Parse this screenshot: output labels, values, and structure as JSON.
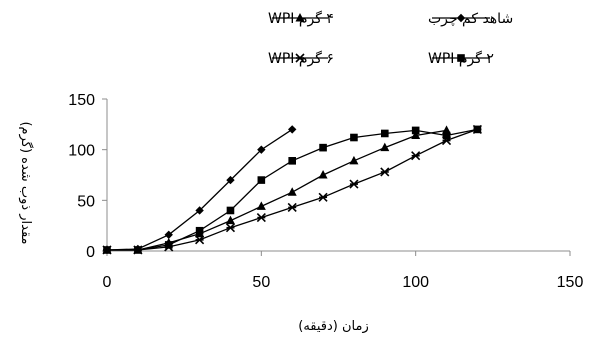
{
  "chart_data": {
    "type": "line",
    "xlabel": "زمان (دقیقه)",
    "ylabel": "مقدار ذوب شده (گرم)",
    "xlim": [
      0,
      150
    ],
    "ylim": [
      0,
      150
    ],
    "xticks": [
      0,
      50,
      100,
      150
    ],
    "yticks": [
      0,
      50,
      100,
      150
    ],
    "grid": false,
    "legend_position": "top",
    "series": [
      {
        "name": "شاهد کم چرب",
        "marker": "diamond",
        "x": [
          0,
          10,
          20,
          30,
          40,
          50,
          60
        ],
        "y": [
          1,
          2,
          16,
          40,
          70,
          100,
          120
        ]
      },
      {
        "name": "۴ گرم WPI",
        "marker": "triangle",
        "x": [
          0,
          10,
          20,
          30,
          40,
          50,
          60,
          70,
          80,
          90,
          100,
          110
        ],
        "y": [
          1,
          1,
          8,
          17,
          30,
          44,
          58,
          75,
          89,
          102,
          114,
          119
        ]
      },
      {
        "name": "۶ گرم WPI",
        "marker": "star",
        "x": [
          0,
          10,
          20,
          30,
          40,
          50,
          60,
          70,
          80,
          90,
          100,
          110,
          120
        ],
        "y": [
          1,
          1,
          4,
          11,
          23,
          33,
          43,
          53,
          66,
          78,
          94,
          109,
          120
        ]
      },
      {
        "name": "۲ گرم WPI",
        "marker": "square",
        "x": [
          0,
          10,
          20,
          30,
          40,
          50,
          60,
          70,
          80,
          90,
          100,
          110,
          120
        ],
        "y": [
          1,
          1,
          6,
          20,
          40,
          70,
          89,
          102,
          112,
          116,
          119,
          114,
          120
        ]
      }
    ]
  }
}
